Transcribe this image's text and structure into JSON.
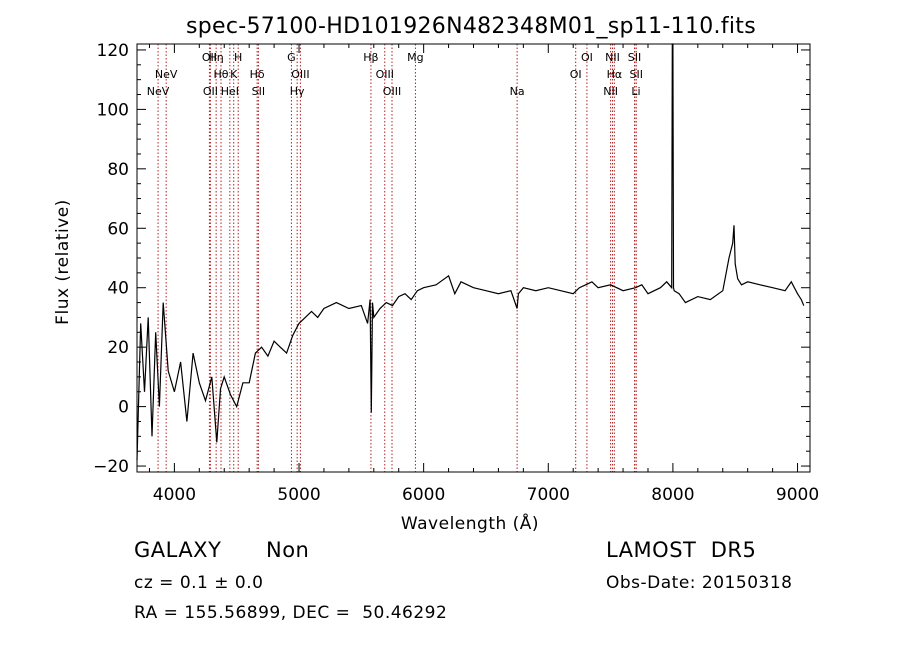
{
  "chart_data": {
    "type": "line",
    "title": "spec-57100-HD101926N482348M01_sp11-110.fits",
    "xlabel": "Wavelength (Å)",
    "ylabel": "Flux (relative)",
    "xlim": [
      3700,
      9100
    ],
    "ylim": [
      -22,
      122
    ],
    "xticks": [
      4000,
      5000,
      6000,
      7000,
      8000,
      9000
    ],
    "yticks": [
      -20,
      0,
      20,
      40,
      60,
      80,
      100,
      120
    ],
    "grid": false,
    "line_color": "#000000",
    "marker_color": "#b22222",
    "spectrum": {
      "x": [
        3700,
        3730,
        3760,
        3790,
        3820,
        3850,
        3880,
        3910,
        3950,
        4000,
        4050,
        4100,
        4150,
        4200,
        4250,
        4300,
        4340,
        4370,
        4400,
        4450,
        4500,
        4550,
        4600,
        4650,
        4700,
        4750,
        4800,
        4850,
        4900,
        4950,
        5000,
        5050,
        5100,
        5150,
        5200,
        5300,
        5400,
        5500,
        5550,
        5570,
        5580,
        5590,
        5600,
        5650,
        5700,
        5750,
        5800,
        5850,
        5900,
        5950,
        6000,
        6100,
        6200,
        6250,
        6300,
        6400,
        6500,
        6600,
        6700,
        6750,
        6760,
        6800,
        6900,
        7000,
        7100,
        7200,
        7250,
        7300,
        7350,
        7400,
        7500,
        7600,
        7700,
        7750,
        7800,
        7900,
        7950,
        7990,
        7995,
        8000,
        8005,
        8010,
        8050,
        8100,
        8200,
        8300,
        8400,
        8450,
        8480,
        8490,
        8500,
        8520,
        8550,
        8600,
        8700,
        8800,
        8900,
        8950,
        9000,
        9030,
        9050
      ],
      "y": [
        -18,
        28,
        5,
        30,
        -10,
        25,
        0,
        35,
        12,
        5,
        15,
        -5,
        18,
        8,
        2,
        10,
        -12,
        6,
        10,
        4,
        0,
        8,
        8,
        18,
        20,
        17,
        22,
        20,
        18,
        24,
        28,
        30,
        32,
        30,
        33,
        35,
        33,
        34,
        28,
        36,
        -2,
        35,
        30,
        33,
        35,
        34,
        37,
        38,
        36,
        39,
        40,
        41,
        44,
        38,
        42,
        40,
        39,
        38,
        39,
        33,
        38,
        40,
        39,
        40,
        39,
        38,
        40,
        41,
        42,
        40,
        41,
        39,
        40,
        41,
        38,
        40,
        42,
        40,
        122,
        125,
        40,
        39,
        38,
        35,
        37,
        36,
        39,
        50,
        55,
        61,
        48,
        43,
        41,
        42,
        41,
        40,
        39,
        42,
        38,
        36,
        34
      ]
    },
    "lines": [
      {
        "label": "NeV",
        "wavelength": 3869,
        "row": 3
      },
      {
        "label": "NeV",
        "wavelength": 3934,
        "row": 2
      },
      {
        "label": "OII",
        "wavelength": 4281,
        "row": 1
      },
      {
        "label": "OII",
        "wavelength": 4289,
        "row": 3
      },
      {
        "label": "Hη",
        "wavelength": 4335,
        "row": 1
      },
      {
        "label": "Hθ",
        "wavelength": 4374,
        "row": 2
      },
      {
        "label": "HeI",
        "wavelength": 4445,
        "row": 3
      },
      {
        "label": "K",
        "wavelength": 4476,
        "row": 2
      },
      {
        "label": "H",
        "wavelength": 4512,
        "row": 1
      },
      {
        "label": "Hδ",
        "wavelength": 4664,
        "row": 2
      },
      {
        "label": "SII",
        "wavelength": 4674,
        "row": 3
      },
      {
        "label": "G",
        "wavelength": 4939,
        "row": 1
      },
      {
        "label": "Hγ",
        "wavelength": 4985,
        "row": 3
      },
      {
        "label": "OIII",
        "wavelength": 5011,
        "row": 2
      },
      {
        "label": "Hβ",
        "wavelength": 5577,
        "row": 1
      },
      {
        "label": "OIII",
        "wavelength": 5688,
        "row": 2
      },
      {
        "label": "OIII",
        "wavelength": 5746,
        "row": 3
      },
      {
        "label": "Mg",
        "wavelength": 5934,
        "row": 1
      },
      {
        "label": "Na",
        "wavelength": 6750,
        "row": 3
      },
      {
        "label": "OI",
        "wavelength": 7220,
        "row": 2
      },
      {
        "label": "OI",
        "wavelength": 7310,
        "row": 1
      },
      {
        "label": "NII",
        "wavelength": 7500,
        "row": 3
      },
      {
        "label": "NII",
        "wavelength": 7515,
        "row": 1
      },
      {
        "label": "Hα",
        "wavelength": 7530,
        "row": 2
      },
      {
        "label": "SII",
        "wavelength": 7692,
        "row": 1
      },
      {
        "label": "SII",
        "wavelength": 7706,
        "row": 2
      },
      {
        "label": "Li",
        "wavelength": 7704,
        "row": 3
      }
    ]
  },
  "info": {
    "object_type": "GALAXY",
    "subclass": "Non",
    "survey": "LAMOST  DR5",
    "cz": "cz = 0.1 ± 0.0",
    "obs_date": "Obs-Date: 20150318",
    "radec": "RA = 155.56899, DEC =  50.46292"
  }
}
